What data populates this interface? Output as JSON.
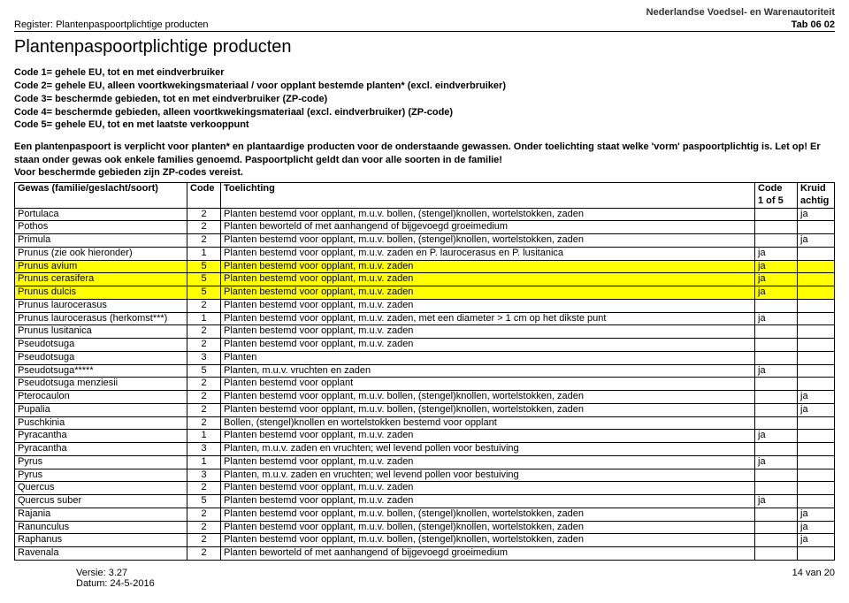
{
  "header": {
    "org": "Nederlandse Voedsel- en Warenautoriteit",
    "register_label": "Register:",
    "register_value": "Plantenpaspoortplichtige producten",
    "tab": "Tab 06 02"
  },
  "title": "Plantenpaspoortplichtige producten",
  "codes": [
    "Code 1= gehele EU, tot en met eindverbruiker",
    "Code 2= gehele EU, alleen voortkwekingsmateriaal / voor opplant bestemde planten* (excl. eindverbruiker)",
    "Code 3= beschermde gebieden, tot en met eindverbruiker (ZP-code)",
    "Code 4= beschermde gebieden, alleen voortkwekingsmateriaal (excl. eindverbruiker) (ZP-code)",
    "Code 5= gehele EU, tot en met laatste verkooppunt"
  ],
  "explain": [
    "Een plantenpaspoort is verplicht voor planten* en plantaardige producten voor de onderstaande gewassen. Onder toelichting staat welke 'vorm' paspoortplichtig is. Let op! Er staan onder gewas ook enkele families genoemd. Paspoortplicht geldt dan voor alle soorten in de familie!",
    "Voor beschermde gebieden zijn ZP-codes vereist."
  ],
  "columns": {
    "gewas": "Gewas (familie/geslacht/soort)",
    "code": "Code",
    "toelichting": "Toelichting",
    "code1of5_l1": "Code",
    "code1of5_l2": "1 of 5",
    "kruid_l1": "Kruid",
    "kruid_l2": "achtig"
  },
  "rows": [
    {
      "g": "Portulaca",
      "c": "2",
      "t": "Planten bestemd voor opplant, m.u.v. bollen, (stengel)knollen, wortelstokken, zaden",
      "c15": "",
      "k": "ja",
      "hl": false
    },
    {
      "g": "Pothos",
      "c": "2",
      "t": "Planten beworteld of met aanhangend of bijgevoegd groeimedium",
      "c15": "",
      "k": "",
      "hl": false
    },
    {
      "g": "Primula",
      "c": "2",
      "t": "Planten bestemd voor opplant, m.u.v. bollen, (stengel)knollen, wortelstokken, zaden",
      "c15": "",
      "k": "ja",
      "hl": false
    },
    {
      "g": "Prunus (zie ook hieronder)",
      "c": "1",
      "t": "Planten bestemd voor opplant, m.u.v. zaden en P. laurocerasus en P. lusitanica",
      "c15": "ja",
      "k": "",
      "hl": false
    },
    {
      "g": "Prunus avium",
      "c": "5",
      "t": "Planten bestemd voor opplant, m.u.v. zaden",
      "c15": "ja",
      "k": "",
      "hl": true
    },
    {
      "g": "Prunus cerasifera",
      "c": "5",
      "t": "Planten bestemd voor opplant, m.u.v. zaden",
      "c15": "ja",
      "k": "",
      "hl": true
    },
    {
      "g": "Prunus dulcis",
      "c": "5",
      "t": "Planten bestemd voor opplant, m.u.v. zaden",
      "c15": "ja",
      "k": "",
      "hl": true
    },
    {
      "g": "Prunus laurocerasus",
      "c": "2",
      "t": "Planten bestemd voor opplant, m.u.v. zaden",
      "c15": "",
      "k": "",
      "hl": false
    },
    {
      "g": "Prunus laurocerasus (herkomst***)",
      "c": "1",
      "t": "Planten bestemd voor opplant, m.u.v. zaden, met een diameter > 1 cm op het dikste punt",
      "c15": "ja",
      "k": "",
      "hl": false
    },
    {
      "g": "Prunus lusitanica",
      "c": "2",
      "t": "Planten bestemd voor opplant, m.u.v. zaden",
      "c15": "",
      "k": "",
      "hl": false
    },
    {
      "g": "Pseudotsuga",
      "c": "2",
      "t": "Planten bestemd voor opplant, m.u.v. zaden",
      "c15": "",
      "k": "",
      "hl": false
    },
    {
      "g": "Pseudotsuga",
      "c": "3",
      "t": "Planten",
      "c15": "",
      "k": "",
      "hl": false
    },
    {
      "g": "Pseudotsuga*****",
      "c": "5",
      "t": "Planten, m.u.v. vruchten en zaden",
      "c15": "ja",
      "k": "",
      "hl": false
    },
    {
      "g": "Pseudotsuga menziesii",
      "c": "2",
      "t": "Planten bestemd voor opplant",
      "c15": "",
      "k": "",
      "hl": false
    },
    {
      "g": "Pterocaulon",
      "c": "2",
      "t": "Planten bestemd voor opplant, m.u.v. bollen, (stengel)knollen, wortelstokken, zaden",
      "c15": "",
      "k": "ja",
      "hl": false
    },
    {
      "g": "Pupalia",
      "c": "2",
      "t": "Planten bestemd voor opplant, m.u.v. bollen, (stengel)knollen, wortelstokken, zaden",
      "c15": "",
      "k": "ja",
      "hl": false
    },
    {
      "g": "Puschkinia",
      "c": "2",
      "t": "Bollen, (stengel)knollen en wortelstokken bestemd voor opplant",
      "c15": "",
      "k": "",
      "hl": false
    },
    {
      "g": "Pyracantha",
      "c": "1",
      "t": "Planten bestemd voor opplant, m.u.v. zaden",
      "c15": "ja",
      "k": "",
      "hl": false
    },
    {
      "g": "Pyracantha",
      "c": "3",
      "t": "Planten, m.u.v. zaden en vruchten; wel levend pollen voor bestuiving",
      "c15": "",
      "k": "",
      "hl": false
    },
    {
      "g": "Pyrus",
      "c": "1",
      "t": "Planten bestemd voor opplant, m.u.v. zaden",
      "c15": "ja",
      "k": "",
      "hl": false
    },
    {
      "g": "Pyrus",
      "c": "3",
      "t": "Planten, m.u.v. zaden en vruchten; wel levend pollen voor bestuiving",
      "c15": "",
      "k": "",
      "hl": false
    },
    {
      "g": "Quercus",
      "c": "2",
      "t": "Planten bestemd voor opplant, m.u.v. zaden",
      "c15": "",
      "k": "",
      "hl": false
    },
    {
      "g": "Quercus suber",
      "c": "5",
      "t": "Planten bestemd voor opplant, m.u.v. zaden",
      "c15": "ja",
      "k": "",
      "hl": false
    },
    {
      "g": "Rajania",
      "c": "2",
      "t": "Planten bestemd voor opplant, m.u.v. bollen, (stengel)knollen, wortelstokken, zaden",
      "c15": "",
      "k": "ja",
      "hl": false
    },
    {
      "g": "Ranunculus",
      "c": "2",
      "t": "Planten bestemd voor opplant, m.u.v. bollen, (stengel)knollen, wortelstokken, zaden",
      "c15": "",
      "k": "ja",
      "hl": false
    },
    {
      "g": "Raphanus",
      "c": "2",
      "t": "Planten bestemd voor opplant, m.u.v. bollen, (stengel)knollen, wortelstokken, zaden",
      "c15": "",
      "k": "ja",
      "hl": false
    },
    {
      "g": "Ravenala",
      "c": "2",
      "t": "Planten beworteld of met aanhangend of bijgevoegd groeimedium",
      "c15": "",
      "k": "",
      "hl": false
    }
  ],
  "footer": {
    "versie_label": "Versie:",
    "versie": "3.27",
    "datum_label": "Datum:",
    "datum": "24-5-2016",
    "page": "14 van 20"
  }
}
